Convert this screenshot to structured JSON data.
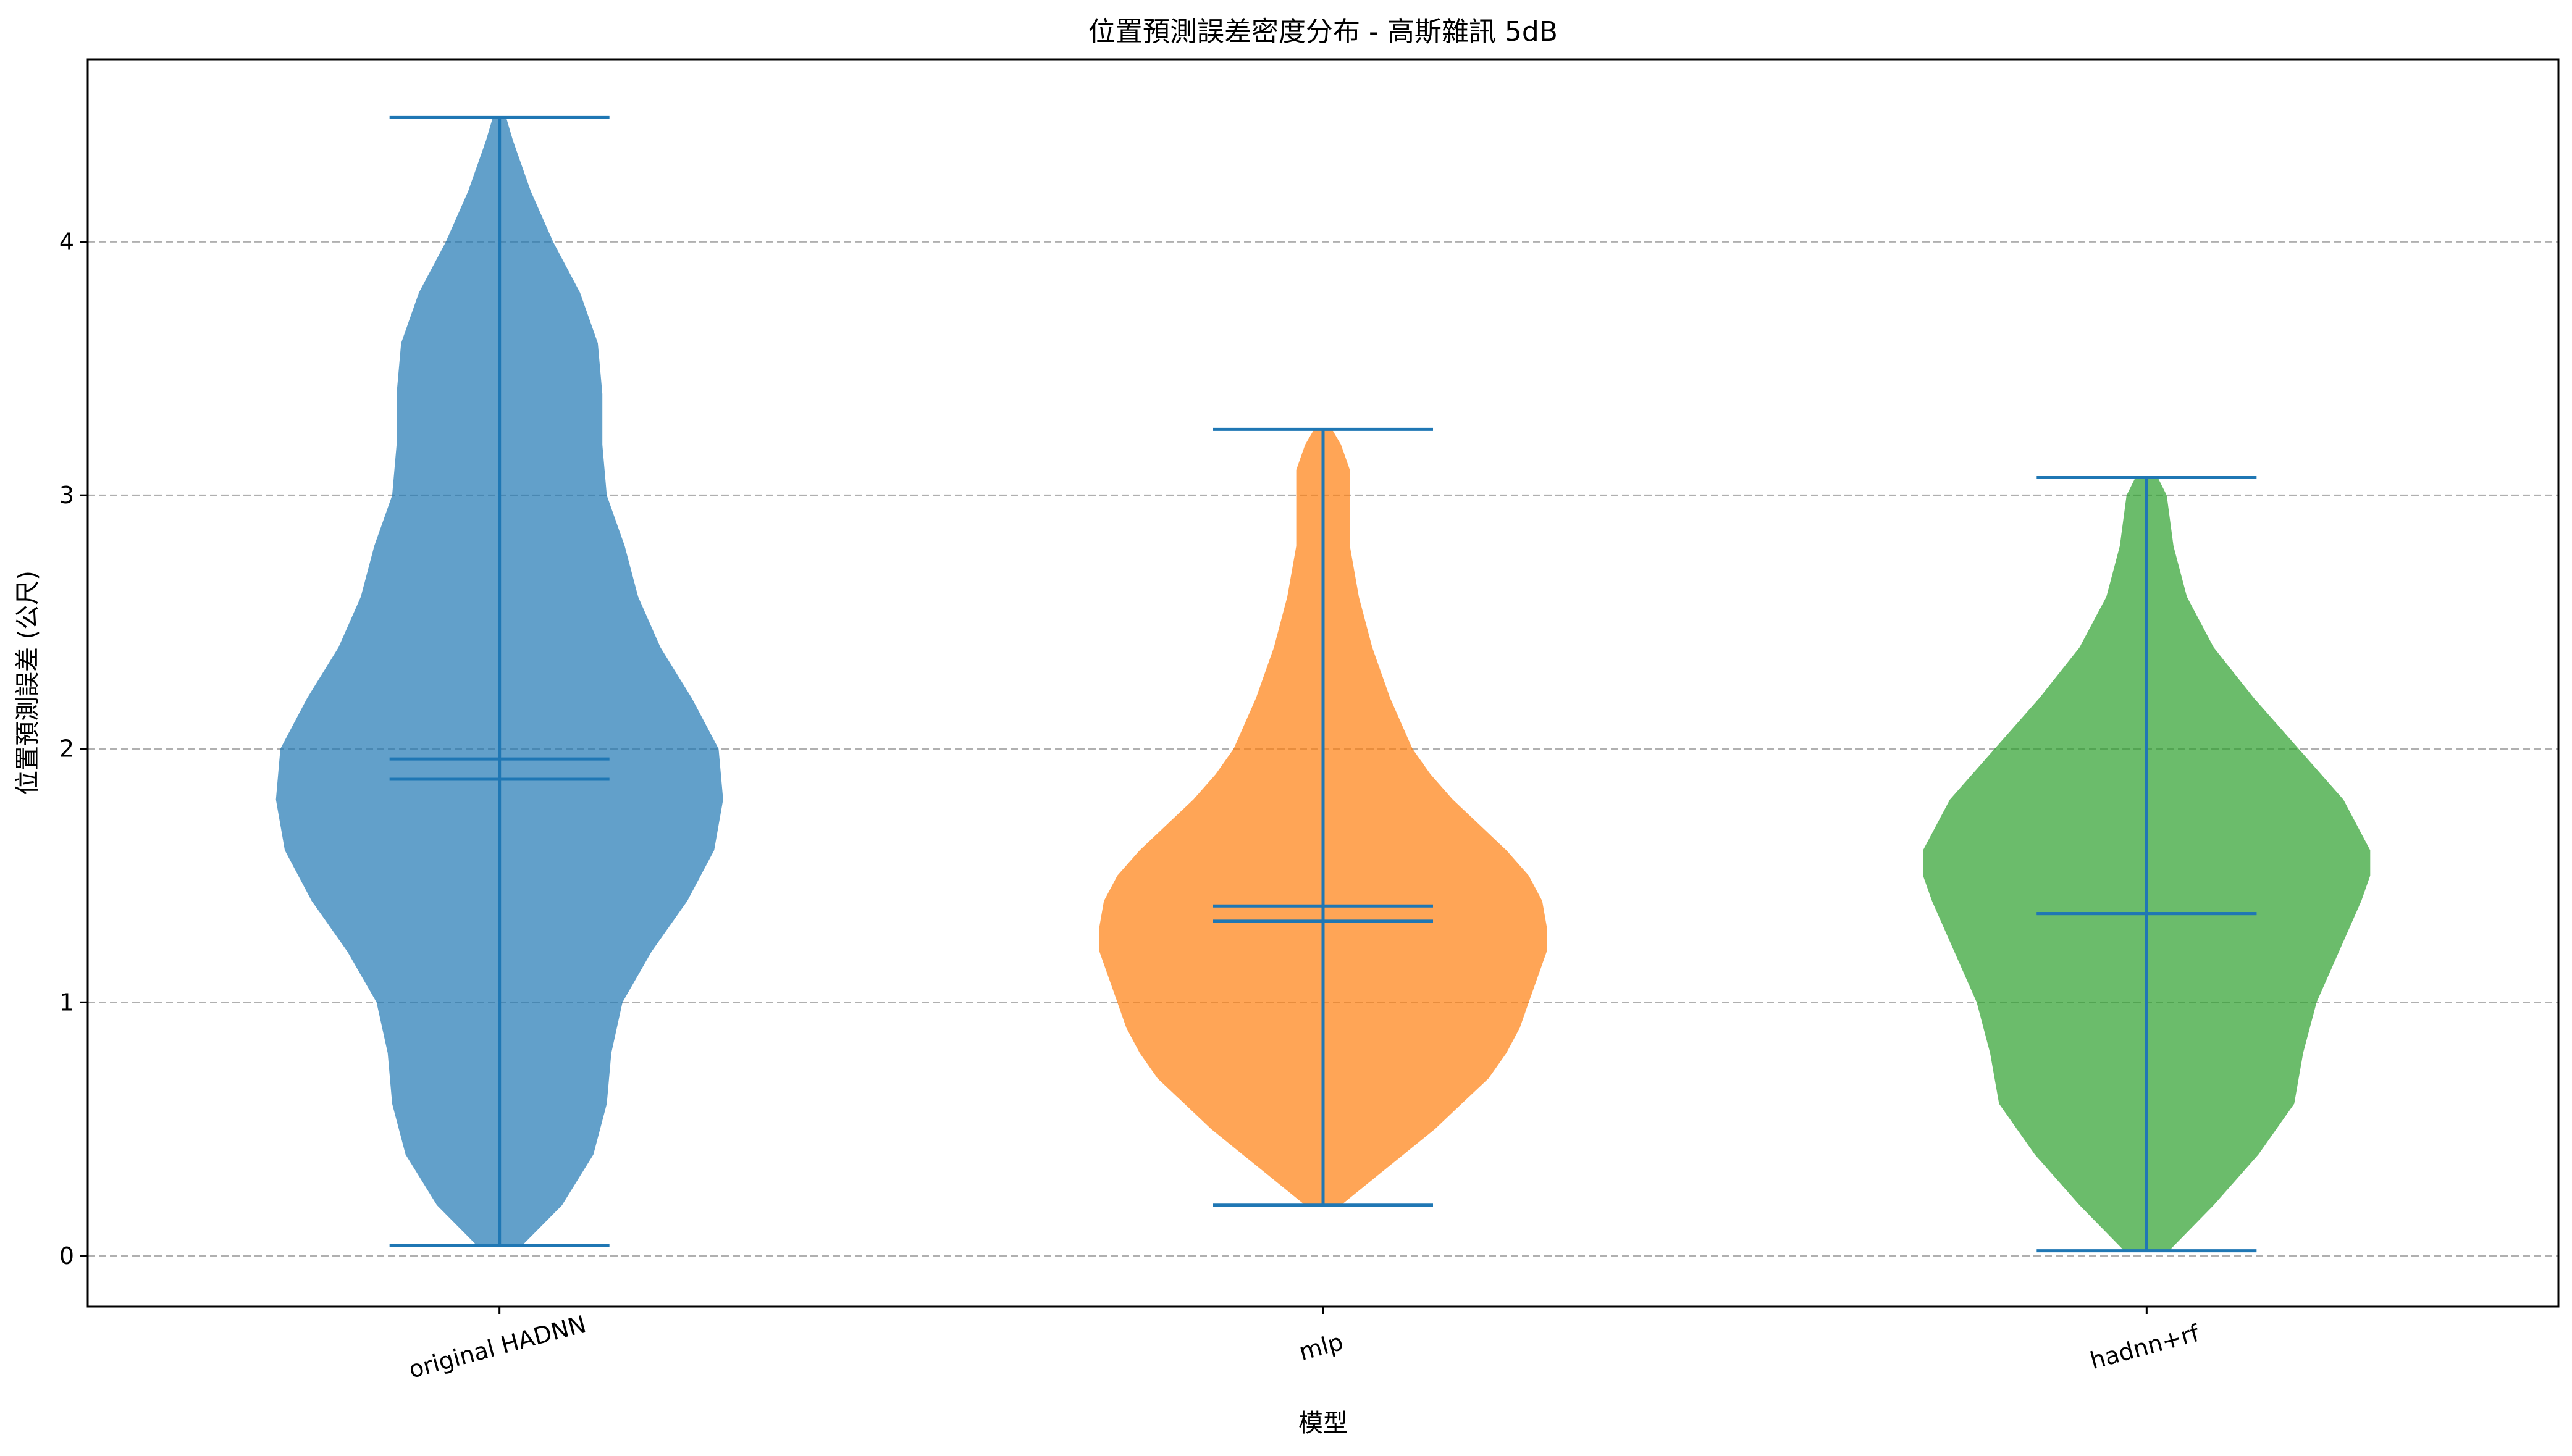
{
  "chart_data": {
    "type": "violin",
    "title": "位置預測誤差密度分布 - 高斯雜訊 5dB",
    "xlabel": "模型",
    "ylabel": "位置預測誤差 (公尺)",
    "ylim": [
      -0.2,
      4.72
    ],
    "yticks": [
      0,
      1,
      2,
      3,
      4
    ],
    "grid": "y-dashed",
    "categories": [
      "original HADNN",
      "mlp",
      "hadnn+rf"
    ],
    "series": [
      {
        "name": "original HADNN",
        "color": "#1f77b4",
        "min": 0.04,
        "max": 4.49,
        "mean": 1.96,
        "median": 1.88,
        "density": [
          [
            0.04,
            0.1
          ],
          [
            0.2,
            0.28
          ],
          [
            0.4,
            0.42
          ],
          [
            0.6,
            0.48
          ],
          [
            0.8,
            0.5
          ],
          [
            1.0,
            0.55
          ],
          [
            1.2,
            0.68
          ],
          [
            1.4,
            0.84
          ],
          [
            1.6,
            0.96
          ],
          [
            1.8,
            1.0
          ],
          [
            2.0,
            0.98
          ],
          [
            2.2,
            0.86
          ],
          [
            2.4,
            0.72
          ],
          [
            2.6,
            0.62
          ],
          [
            2.8,
            0.56
          ],
          [
            3.0,
            0.48
          ],
          [
            3.2,
            0.46
          ],
          [
            3.4,
            0.46
          ],
          [
            3.6,
            0.44
          ],
          [
            3.8,
            0.36
          ],
          [
            4.0,
            0.24
          ],
          [
            4.2,
            0.14
          ],
          [
            4.4,
            0.06
          ],
          [
            4.49,
            0.03
          ]
        ]
      },
      {
        "name": "mlp",
        "color": "#ff7f0e",
        "min": 0.2,
        "max": 3.26,
        "mean": 1.38,
        "median": 1.32,
        "density": [
          [
            0.2,
            0.08
          ],
          [
            0.3,
            0.22
          ],
          [
            0.4,
            0.36
          ],
          [
            0.5,
            0.5
          ],
          [
            0.6,
            0.62
          ],
          [
            0.7,
            0.74
          ],
          [
            0.8,
            0.82
          ],
          [
            0.9,
            0.88
          ],
          [
            1.0,
            0.92
          ],
          [
            1.1,
            0.96
          ],
          [
            1.2,
            1.0
          ],
          [
            1.3,
            1.0
          ],
          [
            1.4,
            0.98
          ],
          [
            1.5,
            0.92
          ],
          [
            1.6,
            0.82
          ],
          [
            1.7,
            0.7
          ],
          [
            1.8,
            0.58
          ],
          [
            1.9,
            0.48
          ],
          [
            2.0,
            0.4
          ],
          [
            2.2,
            0.3
          ],
          [
            2.4,
            0.22
          ],
          [
            2.6,
            0.16
          ],
          [
            2.8,
            0.12
          ],
          [
            3.0,
            0.12
          ],
          [
            3.1,
            0.12
          ],
          [
            3.2,
            0.08
          ],
          [
            3.26,
            0.04
          ]
        ]
      },
      {
        "name": "hadnn+rf",
        "color": "#2ca02c",
        "min": 0.02,
        "max": 3.07,
        "mean": 1.35,
        "median": 1.35,
        "density": [
          [
            0.02,
            0.1
          ],
          [
            0.2,
            0.3
          ],
          [
            0.4,
            0.5
          ],
          [
            0.6,
            0.66
          ],
          [
            0.8,
            0.7
          ],
          [
            1.0,
            0.76
          ],
          [
            1.2,
            0.86
          ],
          [
            1.4,
            0.96
          ],
          [
            1.5,
            1.0
          ],
          [
            1.6,
            1.0
          ],
          [
            1.8,
            0.88
          ],
          [
            2.0,
            0.68
          ],
          [
            2.2,
            0.48
          ],
          [
            2.4,
            0.3
          ],
          [
            2.6,
            0.18
          ],
          [
            2.8,
            0.12
          ],
          [
            3.0,
            0.09
          ],
          [
            3.07,
            0.05
          ]
        ]
      }
    ]
  }
}
